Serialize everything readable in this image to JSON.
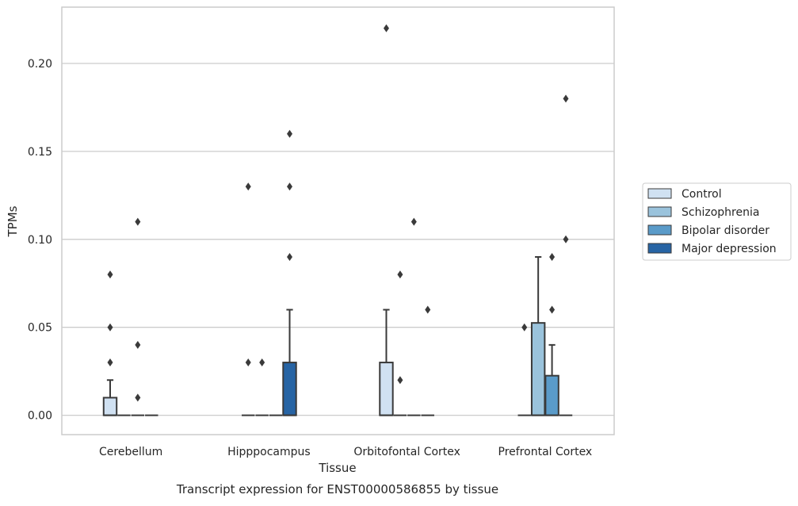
{
  "chart_data": {
    "type": "box",
    "title": "Transcript expression for ENST00000586855 by tissue",
    "xlabel": "Tissue",
    "ylabel": "TPMs",
    "ylim": [
      -0.011,
      0.232
    ],
    "yticks": [
      0.0,
      0.05,
      0.1,
      0.15,
      0.2
    ],
    "ytick_labels": [
      "0.00",
      "0.05",
      "0.10",
      "0.15",
      "0.20"
    ],
    "grid": "horizontal",
    "legend_position": "right",
    "categories": [
      "Cerebellum",
      "Hipppocampus",
      "Orbitofontal Cortex",
      "Prefrontal Cortex"
    ],
    "series": [
      {
        "name": "Control",
        "color": "#d0e1f2",
        "boxes": [
          {
            "q1": 0.0,
            "median": 0.0,
            "q3": 0.01,
            "whisker_low": 0.0,
            "whisker_high": 0.02,
            "outliers": [
              0.03,
              0.05,
              0.08
            ]
          },
          {
            "q1": 0.0,
            "median": 0.0,
            "q3": 0.0,
            "whisker_low": 0.0,
            "whisker_high": 0.0,
            "outliers": [
              0.03,
              0.13
            ]
          },
          {
            "q1": 0.0,
            "median": 0.0,
            "q3": 0.03,
            "whisker_low": 0.0,
            "whisker_high": 0.06,
            "outliers": [
              0.22
            ]
          },
          {
            "q1": 0.0,
            "median": 0.0,
            "q3": 0.0,
            "whisker_low": 0.0,
            "whisker_high": 0.0,
            "outliers": [
              0.05
            ]
          }
        ]
      },
      {
        "name": "Schizophrenia",
        "color": "#9ac3dc",
        "boxes": [
          {
            "q1": 0.0,
            "median": 0.0,
            "q3": 0.0,
            "whisker_low": 0.0,
            "whisker_high": 0.0,
            "outliers": []
          },
          {
            "q1": 0.0,
            "median": 0.0,
            "q3": 0.0,
            "whisker_low": 0.0,
            "whisker_high": 0.0,
            "outliers": [
              0.03
            ]
          },
          {
            "q1": 0.0,
            "median": 0.0,
            "q3": 0.0,
            "whisker_low": 0.0,
            "whisker_high": 0.0,
            "outliers": [
              0.02,
              0.08
            ]
          },
          {
            "q1": 0.0,
            "median": 0.0,
            "q3": 0.0525,
            "whisker_low": 0.0,
            "whisker_high": 0.09,
            "outliers": []
          }
        ]
      },
      {
        "name": "Bipolar disorder",
        "color": "#5a9bc9",
        "boxes": [
          {
            "q1": 0.0,
            "median": 0.0,
            "q3": 0.0,
            "whisker_low": 0.0,
            "whisker_high": 0.0,
            "outliers": [
              0.01,
              0.04,
              0.11
            ]
          },
          {
            "q1": 0.0,
            "median": 0.0,
            "q3": 0.0,
            "whisker_low": 0.0,
            "whisker_high": 0.0,
            "outliers": []
          },
          {
            "q1": 0.0,
            "median": 0.0,
            "q3": 0.0,
            "whisker_low": 0.0,
            "whisker_high": 0.0,
            "outliers": [
              0.11
            ]
          },
          {
            "q1": 0.0,
            "median": 0.0,
            "q3": 0.0225,
            "whisker_low": 0.0,
            "whisker_high": 0.04,
            "outliers": [
              0.06,
              0.09
            ]
          }
        ]
      },
      {
        "name": "Major depression",
        "color": "#2764a4",
        "boxes": [
          {
            "q1": 0.0,
            "median": 0.0,
            "q3": 0.0,
            "whisker_low": 0.0,
            "whisker_high": 0.0,
            "outliers": []
          },
          {
            "q1": 0.0,
            "median": 0.0,
            "q3": 0.03,
            "whisker_low": 0.0,
            "whisker_high": 0.06,
            "outliers": [
              0.09,
              0.13,
              0.16
            ]
          },
          {
            "q1": 0.0,
            "median": 0.0,
            "q3": 0.0,
            "whisker_low": 0.0,
            "whisker_high": 0.0,
            "outliers": [
              0.06
            ]
          },
          {
            "q1": 0.0,
            "median": 0.0,
            "q3": 0.0,
            "whisker_low": 0.0,
            "whisker_high": 0.0,
            "outliers": [
              0.1,
              0.18
            ]
          }
        ]
      }
    ]
  }
}
